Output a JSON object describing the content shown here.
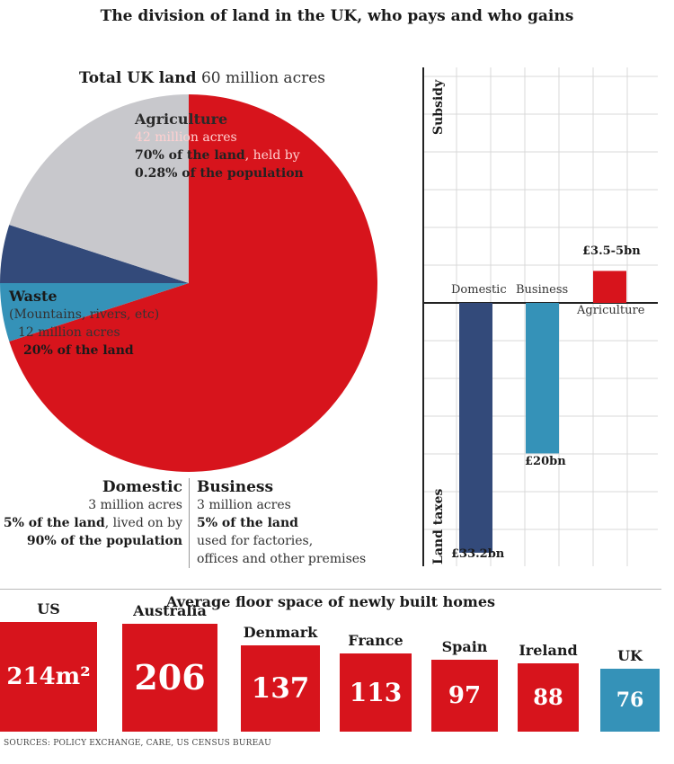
{
  "title": "The division of land in the UK, who pays and who gains",
  "colors": {
    "red": "#d7141c",
    "grey": "#c8c8cc",
    "navy": "#334a7a",
    "teal": "#3592b8",
    "uk": "#3592b8"
  },
  "chart_data": [
    {
      "type": "pie",
      "title": "Total UK land",
      "title_value": "60 million acres",
      "slices": [
        {
          "name": "Agriculture",
          "value": 42,
          "unit": "million acres",
          "color": "#d7141c"
        },
        {
          "name": "Business",
          "value": 3,
          "unit": "million acres",
          "color": "#3592b8"
        },
        {
          "name": "Domestic",
          "value": 3,
          "unit": "million acres",
          "color": "#334a7a"
        },
        {
          "name": "Waste",
          "value": 12,
          "unit": "million acres",
          "color": "#c8c8cc"
        }
      ],
      "labels": {
        "agriculture": {
          "head": "Agriculture",
          "l1": "42 million acres",
          "l2a": "70% of the land",
          "l2b": ", held by",
          "l3": "0.28% of the population"
        },
        "waste": {
          "head": "Waste",
          "l1": "(Mountains, rivers, etc)",
          "l2": "12 million acres",
          "l3": "20% of the land"
        },
        "domestic": {
          "head": "Domestic",
          "l1": "3 million acres",
          "l2a": "5% of the land",
          "l2b": ", lived on by",
          "l3": "90% of the population"
        },
        "business": {
          "head": "Business",
          "l1": "3 million acres",
          "l2": "5% of the land",
          "l3": "used for factories,",
          "l4": "offices and other premises"
        }
      }
    },
    {
      "type": "bar",
      "categories": [
        "Domestic",
        "Business",
        "Agriculture"
      ],
      "values": [
        -33.2,
        -20,
        4.25
      ],
      "value_labels": [
        "£33.2bn",
        "£20bn",
        "£3.5-5bn"
      ],
      "colors": [
        "#334a7a",
        "#3592b8",
        "#d7141c"
      ],
      "unit": "£bn",
      "axis_top_label": "Subsidy",
      "axis_bottom_label": "Land taxes",
      "ylim": [
        -35,
        30
      ],
      "grid": true
    },
    {
      "type": "bar",
      "title": "Average floor space of newly built homes",
      "categories": [
        "US",
        "Australia",
        "Denmark",
        "France",
        "Spain",
        "Ireland",
        "UK"
      ],
      "values": [
        214,
        206,
        137,
        113,
        97,
        88,
        76
      ],
      "value_labels": [
        "214m²",
        "206",
        "137",
        "113",
        "97",
        "88",
        "76"
      ],
      "unit": "m²"
    }
  ],
  "sources": "SOURCES: POLICY EXCHANGE, CARE, US CENSUS BUREAU"
}
